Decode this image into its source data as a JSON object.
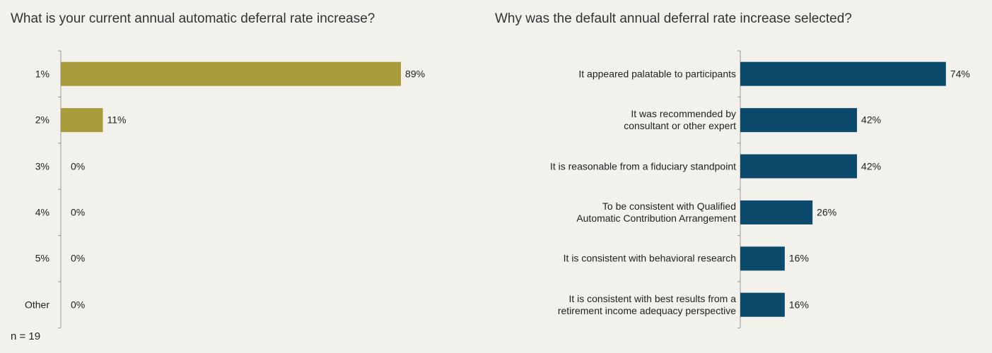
{
  "chart_data": [
    {
      "type": "bar",
      "orientation": "horizontal",
      "title": "What is your current annual automatic deferral rate increase?",
      "categories": [
        "1%",
        "2%",
        "3%",
        "4%",
        "5%",
        "Other"
      ],
      "values": [
        89,
        11,
        0,
        0,
        0,
        0
      ],
      "value_labels": [
        "89%",
        "11%",
        "0%",
        "0%",
        "0%",
        "0%"
      ],
      "color": "#a89b3b"
    },
    {
      "type": "bar",
      "orientation": "horizontal",
      "title": "Why was the default annual deferral rate increase selected?",
      "categories": [
        "It appeared palatable to participants",
        "It was recommended by\nconsultant or other expert",
        "It is reasonable from a fiduciary standpoint",
        "To be consistent with Qualified\nAutomatic Contribution Arrangement",
        "It is consistent with behavioral research",
        "It is consistent with best results from a\nretirement income adequacy perspective"
      ],
      "values": [
        74,
        42,
        42,
        26,
        16,
        16
      ],
      "value_labels": [
        "74%",
        "42%",
        "42%",
        "26%",
        "16%",
        "16%"
      ],
      "color": "#0b4a6b"
    }
  ],
  "note": "n = 19"
}
